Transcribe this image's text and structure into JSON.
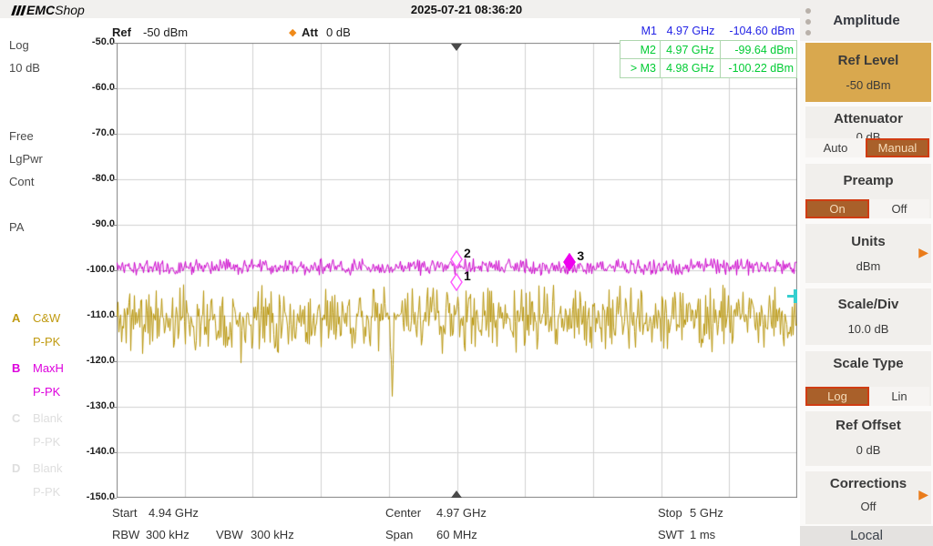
{
  "header": {
    "logo_bold": "EMC",
    "logo_rest": "Shop",
    "timestamp": "2025-07-21 08:36:20"
  },
  "status": {
    "ref_label": "Ref",
    "ref_value": "-50 dBm",
    "att_label": "Att",
    "att_value": "0 dB",
    "att_icon": "diamond-icon"
  },
  "marker_table": {
    "rows": [
      {
        "name": "M1",
        "freq": "4.97 GHz",
        "ampl": "-104.60 dBm",
        "color": "#2323e6",
        "boxed": false
      },
      {
        "name": "M2",
        "freq": "4.97 GHz",
        "ampl": "-99.64 dBm",
        "color": "#00cc33",
        "boxed": true
      },
      {
        "name": "> M3",
        "freq": "4.98 GHz",
        "ampl": "-100.22 dBm",
        "color": "#00cc33",
        "boxed": true
      }
    ]
  },
  "left_panel": {
    "labels": [
      "Log",
      "10 dB",
      "Free",
      "LgPwr",
      "Cont",
      "PA"
    ]
  },
  "trace_legend": [
    {
      "letter": "A",
      "mode": "C&W",
      "detector": "P-PK",
      "color": "#c09a10"
    },
    {
      "letter": "B",
      "mode": "MaxH",
      "detector": "P-PK",
      "color": "#dd00dd"
    },
    {
      "letter": "C",
      "mode": "Blank",
      "detector": "P-PK",
      "color": "#dedede"
    },
    {
      "letter": "D",
      "mode": "Blank",
      "detector": "P-PK",
      "color": "#dedede"
    }
  ],
  "chart_data": {
    "type": "line",
    "x_start_ghz": 4.94,
    "x_stop_ghz": 5.0,
    "x_center_ghz": 4.97,
    "span": "60 MHz",
    "ylim": [
      -150,
      -50
    ],
    "y_tick_labels": [
      "-50.0",
      "-60.0",
      "-70.0",
      "-80.0",
      "-90.0",
      "-100.0",
      "-110.0",
      "-120.0",
      "-130.0",
      "-140.0",
      "-150.0"
    ],
    "grid_divisions_x": 10,
    "grid_divisions_y": 10,
    "grid": true,
    "series": [
      {
        "name": "A C&W P-PK",
        "color": "#b8950a",
        "baseline_dbm": -110.5,
        "pp_db": 16.0,
        "seed": 11,
        "clamp_max_dbm": -102.6,
        "dip_prob": 0.015,
        "dip_extra_db": 5,
        "spike": {
          "x_ghz": 4.9643,
          "level_dbm": -127.7
        }
      },
      {
        "name": "B MaxH P-PK",
        "color": "#cc00cc",
        "baseline_dbm": -99.3,
        "pp_db": 4.2,
        "seed": 5,
        "clamp_max_dbm": -96.6,
        "peak_prob": 0.04,
        "peak_extra_db": 1.3
      }
    ],
    "markers": [
      {
        "label": "1",
        "x_ghz": 4.97,
        "level_dbm": -104.6,
        "style": "hollow"
      },
      {
        "label": "2",
        "x_ghz": 4.97,
        "level_dbm": -99.64,
        "style": "hollow"
      },
      {
        "label": "3",
        "x_ghz": 4.98,
        "level_dbm": -100.22,
        "style": "filled"
      }
    ]
  },
  "footer": {
    "start_label": "Start",
    "start_value": "4.94 GHz",
    "center_label": "Center",
    "center_value": "4.97 GHz",
    "stop_label": "Stop",
    "stop_value": "5 GHz",
    "rbw_label": "RBW",
    "rbw_value": "300 kHz",
    "vbw_label": "VBW",
    "vbw_value": "300 kHz",
    "span_label": "Span",
    "span_value": "60 MHz",
    "swt_label": "SWT",
    "swt_value": "1 ms"
  },
  "sidebar": {
    "title": "Amplitude",
    "buttons": [
      {
        "label": "Ref Level",
        "value": "-50 dBm",
        "highlighted": true
      },
      {
        "label": "Attenuator",
        "value": "0 dB",
        "toggle": {
          "options": [
            "Auto",
            "Manual"
          ],
          "selected": "Manual"
        }
      },
      {
        "label": "Preamp",
        "toggle": {
          "options": [
            "On",
            "Off"
          ],
          "selected": "On"
        }
      },
      {
        "label": "Units",
        "value": "dBm",
        "arrow": true
      },
      {
        "label": "Scale/Div",
        "value": "10.0 dB"
      },
      {
        "label": "Scale Type",
        "toggle": {
          "options": [
            "Log",
            "Lin"
          ],
          "selected": "Log"
        }
      },
      {
        "label": "Ref Offset",
        "value": "0 dB"
      },
      {
        "label": "Corrections",
        "value": "Off",
        "arrow": true
      }
    ],
    "local_label": "Local"
  },
  "colors": {
    "accent_tan": "#d9a84e",
    "toggle_selected_bg": "#a9602a",
    "toggle_selected_border": "#d03c12",
    "arrow_orange": "#ea7c1b",
    "trace_a": "#b8950a",
    "trace_b": "#cc00cc",
    "marker_outline": "#ff5cff",
    "marker_fill": "#ee00ee",
    "grid": "#d2d2d2",
    "plot_border": "#838383",
    "display_line_cyan": "#35cfcf"
  }
}
